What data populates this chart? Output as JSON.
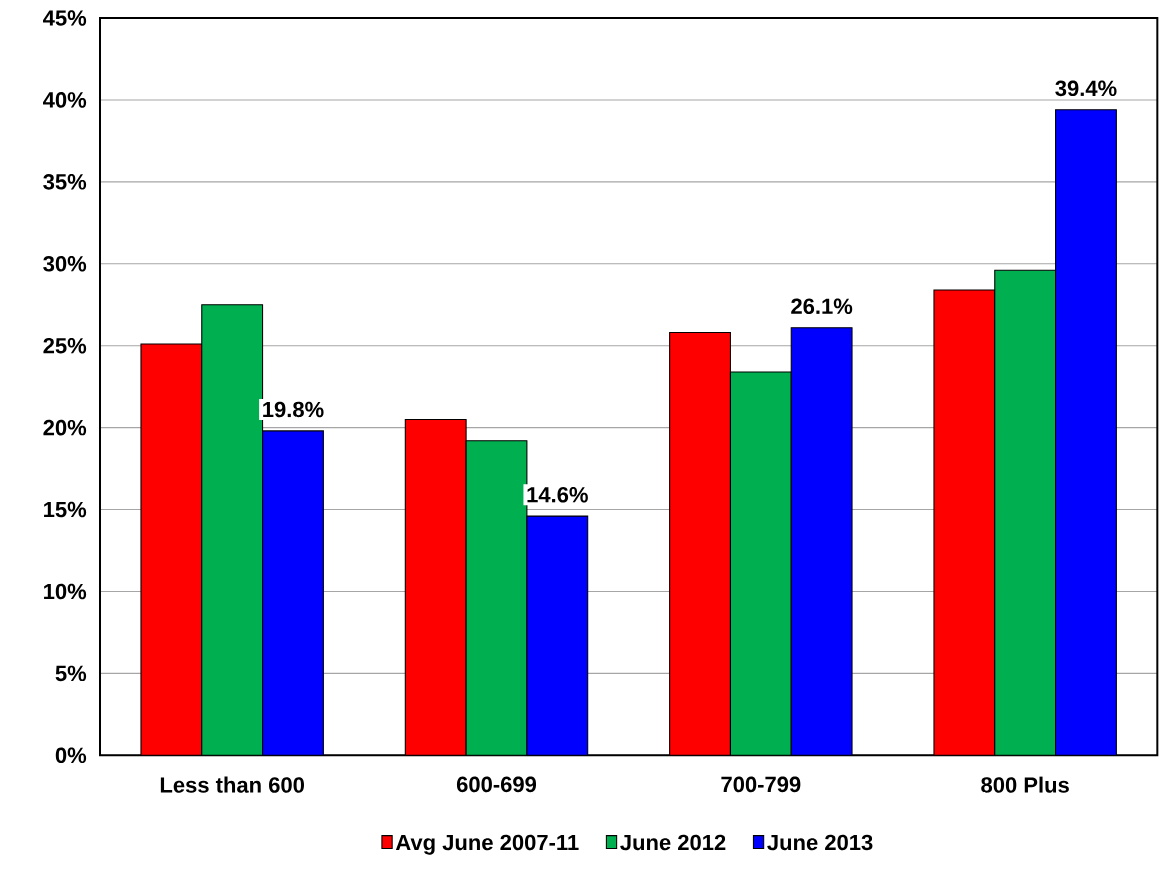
{
  "chart_data": {
    "type": "bar",
    "categories": [
      "Less than 600",
      "600-699",
      "700-799",
      "800 Plus"
    ],
    "series": [
      {
        "name": "Avg June 2007-11",
        "color": "#ff0000",
        "values": [
          25.1,
          20.5,
          25.8,
          28.4
        ]
      },
      {
        "name": "June 2012",
        "color": "#00b050",
        "values": [
          27.5,
          19.2,
          23.4,
          29.6
        ]
      },
      {
        "name": "June 2013",
        "color": "#0000ff",
        "values": [
          19.8,
          14.6,
          26.1,
          39.4
        ],
        "value_labels": [
          "19.8%",
          "14.6%",
          "26.1%",
          "39.4%"
        ]
      }
    ],
    "ylim": [
      0,
      45
    ],
    "yticks": [
      {
        "value": 0,
        "label": "0%"
      },
      {
        "value": 5,
        "label": "5%"
      },
      {
        "value": 10,
        "label": "10%"
      },
      {
        "value": 15,
        "label": "15%"
      },
      {
        "value": 20,
        "label": "20%"
      },
      {
        "value": 25,
        "label": "25%"
      },
      {
        "value": 30,
        "label": "30%"
      },
      {
        "value": 35,
        "label": "35%"
      },
      {
        "value": 40,
        "label": "40%"
      },
      {
        "value": 45,
        "label": "45%"
      }
    ],
    "grid": "y",
    "legend": "bottom"
  }
}
